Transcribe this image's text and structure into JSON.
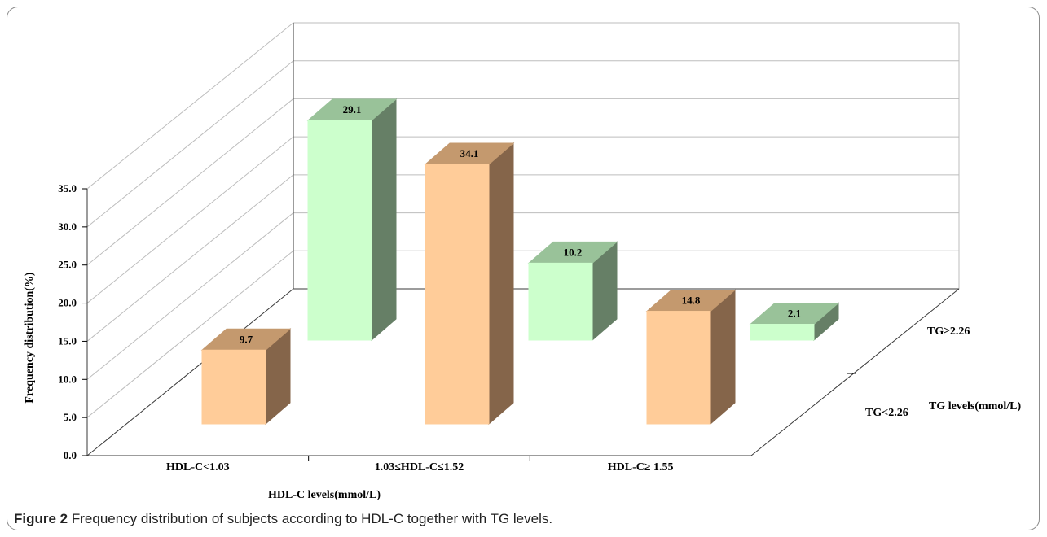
{
  "caption": {
    "label": "Figure 2",
    "text": "Frequency distribution of subjects according to HDL-C together with TG levels."
  },
  "chart_data": {
    "type": "bar",
    "subtype": "3d-clustered",
    "title": "",
    "xlabel": "HDL-C levels(mmol/L)",
    "ylabel": "Frequency distribution(%)",
    "zlabel": "TG levels(mmol/L)",
    "ylim": [
      0,
      35
    ],
    "yticks": [
      "0.0",
      "5.0",
      "10.0",
      "15.0",
      "20.0",
      "25.0",
      "30.0",
      "35.0"
    ],
    "grid": true,
    "categories": [
      "HDL-C<1.03",
      "1.03≤HDL-C≤1.52",
      "HDL-C≥ 1.55"
    ],
    "series": [
      {
        "name": "TG<2.26",
        "values": [
          9.7,
          34.1,
          14.8
        ],
        "color": "#ffcc99",
        "side_color": "#85654a",
        "top_color": "#c4996e"
      },
      {
        "name": "TG≥2.26",
        "values": [
          29.1,
          10.2,
          2.1
        ],
        "color": "#ccffcc",
        "side_color": "#667f66",
        "top_color": "#99c299"
      }
    ]
  }
}
